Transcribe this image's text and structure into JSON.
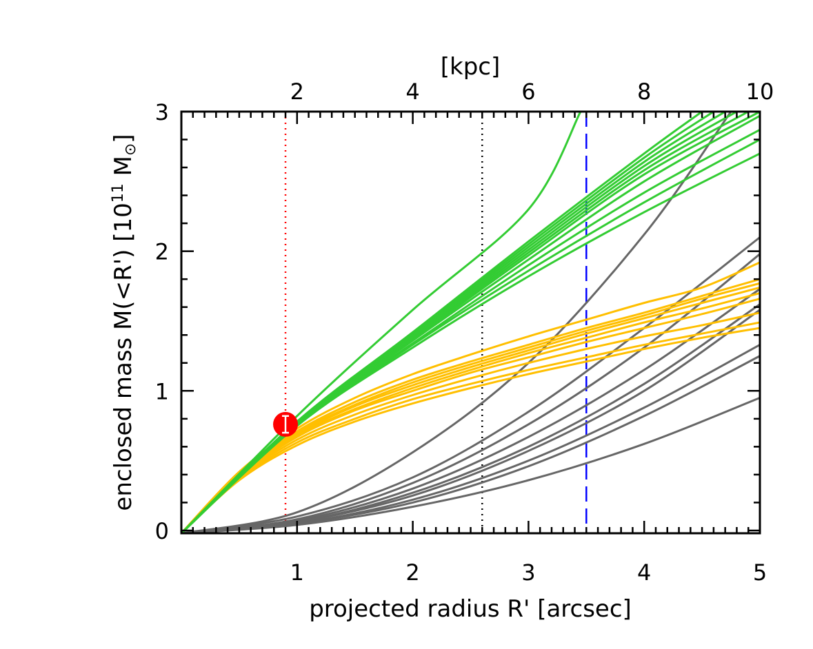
{
  "chart_data": {
    "type": "line",
    "xlabel": "projected radius R' [arcsec]",
    "ylabel": "enclosed mass  M(<R')  [10",
    "ylabel_exp": "11",
    "ylabel_unit": " M",
    "ylabel_unit_sub": "⊙",
    "ylabel_close": "]",
    "top_xlabel": "[kpc]",
    "xlim": [
      0,
      5
    ],
    "ylim": [
      -0.02,
      3.0
    ],
    "x_ticks": [
      1,
      2,
      3,
      4,
      5
    ],
    "y_ticks": [
      0,
      1,
      2,
      3
    ],
    "top_ticks_kpc": [
      2,
      4,
      6,
      8,
      10
    ],
    "kpc_per_arcsec": 2.0,
    "grid": false,
    "vlines": [
      {
        "x": 0.9,
        "color": "#ff0000",
        "style": "dotted"
      },
      {
        "x": 2.6,
        "color": "#000000",
        "style": "dotted"
      },
      {
        "x": 3.5,
        "color": "#0000ff",
        "style": "dashed"
      }
    ],
    "marker": {
      "x": 0.9,
      "y": 0.76,
      "yerr": 0.06,
      "color": "#ff0000"
    },
    "series": [
      {
        "group": "green",
        "color": "#33cc33",
        "points": [
          [
            0,
            -0.02
          ],
          [
            1,
            0.82
          ],
          [
            2,
            1.58
          ],
          [
            3,
            2.3
          ],
          [
            3.45,
            3.0
          ]
        ]
      },
      {
        "group": "green",
        "color": "#33cc33",
        "points": [
          [
            0,
            -0.02
          ],
          [
            1,
            0.78
          ],
          [
            2,
            1.42
          ],
          [
            3,
            2.07
          ],
          [
            4,
            2.7
          ],
          [
            4.5,
            3.0
          ]
        ]
      },
      {
        "group": "green",
        "color": "#33cc33",
        "points": [
          [
            0,
            -0.02
          ],
          [
            1,
            0.78
          ],
          [
            2,
            1.41
          ],
          [
            3,
            2.05
          ],
          [
            4,
            2.67
          ],
          [
            4.6,
            3.0
          ]
        ]
      },
      {
        "group": "green",
        "color": "#33cc33",
        "points": [
          [
            0,
            -0.02
          ],
          [
            1,
            0.77
          ],
          [
            2,
            1.4
          ],
          [
            3,
            2.03
          ],
          [
            4,
            2.64
          ],
          [
            4.7,
            3.0
          ]
        ]
      },
      {
        "group": "green",
        "color": "#33cc33",
        "points": [
          [
            0,
            -0.02
          ],
          [
            1,
            0.77
          ],
          [
            2,
            1.39
          ],
          [
            3,
            2.01
          ],
          [
            4,
            2.61
          ],
          [
            4.8,
            3.0
          ]
        ]
      },
      {
        "group": "green",
        "color": "#33cc33",
        "points": [
          [
            0,
            -0.02
          ],
          [
            1,
            0.77
          ],
          [
            2,
            1.38
          ],
          [
            3,
            1.99
          ],
          [
            4,
            2.58
          ],
          [
            4.9,
            3.0
          ]
        ]
      },
      {
        "group": "green",
        "color": "#33cc33",
        "points": [
          [
            0,
            -0.02
          ],
          [
            1,
            0.76
          ],
          [
            2,
            1.37
          ],
          [
            3,
            1.97
          ],
          [
            4,
            2.55
          ],
          [
            5,
            3.0
          ]
        ]
      },
      {
        "group": "green",
        "color": "#33cc33",
        "points": [
          [
            0,
            -0.02
          ],
          [
            1,
            0.76
          ],
          [
            2,
            1.36
          ],
          [
            3,
            1.94
          ],
          [
            4,
            2.5
          ],
          [
            5,
            2.97
          ]
        ]
      },
      {
        "group": "green",
        "color": "#33cc33",
        "points": [
          [
            0,
            -0.02
          ],
          [
            1,
            0.76
          ],
          [
            2,
            1.34
          ],
          [
            3,
            1.9
          ],
          [
            4,
            2.42
          ],
          [
            5,
            2.87
          ]
        ]
      },
      {
        "group": "green",
        "color": "#33cc33",
        "points": [
          [
            0,
            -0.02
          ],
          [
            1,
            0.75
          ],
          [
            2,
            1.33
          ],
          [
            3,
            1.86
          ],
          [
            4,
            2.35
          ],
          [
            5,
            2.8
          ]
        ]
      },
      {
        "group": "green",
        "color": "#33cc33",
        "points": [
          [
            0,
            -0.02
          ],
          [
            1,
            0.75
          ],
          [
            2,
            1.31
          ],
          [
            3,
            1.82
          ],
          [
            4,
            2.28
          ],
          [
            5,
            2.7
          ]
        ]
      },
      {
        "group": "orange",
        "color": "#ffbf00",
        "points": [
          [
            0,
            -0.02
          ],
          [
            0.5,
            0.42
          ],
          [
            1,
            0.73
          ],
          [
            1.5,
            0.95
          ],
          [
            2,
            1.12
          ],
          [
            2.5,
            1.26
          ],
          [
            3,
            1.39
          ],
          [
            3.5,
            1.51
          ],
          [
            4,
            1.63
          ],
          [
            4.5,
            1.74
          ],
          [
            5,
            1.92
          ]
        ]
      },
      {
        "group": "orange",
        "color": "#ffbf00",
        "points": [
          [
            0,
            -0.02
          ],
          [
            0.5,
            0.41
          ],
          [
            1,
            0.71
          ],
          [
            1.5,
            0.92
          ],
          [
            2,
            1.08
          ],
          [
            2.5,
            1.21
          ],
          [
            3,
            1.33
          ],
          [
            3.5,
            1.45
          ],
          [
            4,
            1.56
          ],
          [
            4.5,
            1.68
          ],
          [
            5,
            1.8
          ]
        ]
      },
      {
        "group": "orange",
        "color": "#ffbf00",
        "points": [
          [
            0,
            -0.02
          ],
          [
            0.5,
            0.41
          ],
          [
            1,
            0.7
          ],
          [
            1.5,
            0.9
          ],
          [
            2,
            1.06
          ],
          [
            2.5,
            1.19
          ],
          [
            3,
            1.31
          ],
          [
            3.5,
            1.43
          ],
          [
            4,
            1.54
          ],
          [
            4.5,
            1.66
          ],
          [
            5,
            1.77
          ]
        ]
      },
      {
        "group": "orange",
        "color": "#ffbf00",
        "points": [
          [
            0,
            -0.02
          ],
          [
            0.5,
            0.4
          ],
          [
            1,
            0.69
          ],
          [
            1.5,
            0.89
          ],
          [
            2,
            1.04
          ],
          [
            2.5,
            1.17
          ],
          [
            3,
            1.29
          ],
          [
            3.5,
            1.41
          ],
          [
            4,
            1.52
          ],
          [
            4.5,
            1.63
          ],
          [
            5,
            1.74
          ]
        ]
      },
      {
        "group": "orange",
        "color": "#ffbf00",
        "points": [
          [
            0,
            -0.02
          ],
          [
            0.5,
            0.4
          ],
          [
            1,
            0.68
          ],
          [
            1.5,
            0.87
          ],
          [
            2,
            1.02
          ],
          [
            2.5,
            1.15
          ],
          [
            3,
            1.27
          ],
          [
            3.5,
            1.38
          ],
          [
            4,
            1.49
          ],
          [
            4.5,
            1.59
          ],
          [
            5,
            1.7
          ]
        ]
      },
      {
        "group": "orange",
        "color": "#ffbf00",
        "points": [
          [
            0,
            -0.02
          ],
          [
            0.5,
            0.39
          ],
          [
            1,
            0.67
          ],
          [
            1.5,
            0.86
          ],
          [
            2,
            1.0
          ],
          [
            2.5,
            1.13
          ],
          [
            3,
            1.24
          ],
          [
            3.5,
            1.35
          ],
          [
            4,
            1.45
          ],
          [
            4.5,
            1.55
          ],
          [
            5,
            1.66
          ]
        ]
      },
      {
        "group": "orange",
        "color": "#ffbf00",
        "points": [
          [
            0,
            -0.02
          ],
          [
            0.5,
            0.38
          ],
          [
            1,
            0.65
          ],
          [
            1.5,
            0.83
          ],
          [
            2,
            0.97
          ],
          [
            2.5,
            1.09
          ],
          [
            3,
            1.2
          ],
          [
            3.5,
            1.3
          ],
          [
            4,
            1.39
          ],
          [
            4.5,
            1.47
          ],
          [
            5,
            1.56
          ]
        ]
      },
      {
        "group": "orange",
        "color": "#ffbf00",
        "points": [
          [
            0,
            -0.02
          ],
          [
            0.5,
            0.37
          ],
          [
            1,
            0.63
          ],
          [
            1.5,
            0.8
          ],
          [
            2,
            0.94
          ],
          [
            2.5,
            1.05
          ],
          [
            3,
            1.15
          ],
          [
            3.5,
            1.24
          ],
          [
            4,
            1.33
          ],
          [
            4.5,
            1.41
          ],
          [
            5,
            1.49
          ]
        ]
      },
      {
        "group": "orange",
        "color": "#ffbf00",
        "points": [
          [
            0,
            -0.02
          ],
          [
            0.5,
            0.36
          ],
          [
            1,
            0.61
          ],
          [
            1.5,
            0.78
          ],
          [
            2,
            0.91
          ],
          [
            2.5,
            1.02
          ],
          [
            3,
            1.12
          ],
          [
            3.5,
            1.21
          ],
          [
            4,
            1.3
          ],
          [
            4.5,
            1.38
          ],
          [
            5,
            1.45
          ]
        ]
      },
      {
        "group": "gray",
        "color": "#666666",
        "points": [
          [
            0,
            -0.02
          ],
          [
            1,
            0.13
          ],
          [
            2,
            0.56
          ],
          [
            3,
            1.2
          ],
          [
            4,
            2.12
          ],
          [
            4.75,
            3.0
          ]
        ]
      },
      {
        "group": "gray",
        "color": "#666666",
        "points": [
          [
            0,
            -0.02
          ],
          [
            1,
            0.1
          ],
          [
            2,
            0.38
          ],
          [
            3,
            0.85
          ],
          [
            4,
            1.45
          ],
          [
            5,
            2.1
          ]
        ]
      },
      {
        "group": "gray",
        "color": "#666666",
        "points": [
          [
            0,
            -0.02
          ],
          [
            1,
            0.08
          ],
          [
            2,
            0.34
          ],
          [
            3,
            0.76
          ],
          [
            4,
            1.31
          ],
          [
            5,
            1.98
          ]
        ]
      },
      {
        "group": "gray",
        "color": "#666666",
        "points": [
          [
            0,
            -0.02
          ],
          [
            1,
            0.07
          ],
          [
            2,
            0.3
          ],
          [
            3,
            0.67
          ],
          [
            4,
            1.15
          ],
          [
            5,
            1.73
          ]
        ]
      },
      {
        "group": "gray",
        "color": "#666666",
        "points": [
          [
            0,
            -0.02
          ],
          [
            1,
            0.06
          ],
          [
            2,
            0.27
          ],
          [
            3,
            0.6
          ],
          [
            4,
            1.05
          ],
          [
            5,
            1.62
          ]
        ]
      },
      {
        "group": "gray",
        "color": "#666666",
        "points": [
          [
            0,
            -0.02
          ],
          [
            1,
            0.06
          ],
          [
            2,
            0.25
          ],
          [
            3,
            0.57
          ],
          [
            4,
            1.0
          ],
          [
            5,
            1.58
          ]
        ]
      },
      {
        "group": "gray",
        "color": "#666666",
        "points": [
          [
            0,
            -0.02
          ],
          [
            1,
            0.05
          ],
          [
            2,
            0.22
          ],
          [
            3,
            0.5
          ],
          [
            4,
            0.88
          ],
          [
            5,
            1.33
          ]
        ]
      },
      {
        "group": "gray",
        "color": "#666666",
        "points": [
          [
            0,
            -0.02
          ],
          [
            1,
            0.05
          ],
          [
            2,
            0.2
          ],
          [
            3,
            0.46
          ],
          [
            4,
            0.82
          ],
          [
            5,
            1.25
          ]
        ]
      },
      {
        "group": "gray",
        "color": "#666666",
        "points": [
          [
            0,
            -0.02
          ],
          [
            1,
            0.04
          ],
          [
            2,
            0.17
          ],
          [
            3,
            0.36
          ],
          [
            4,
            0.62
          ],
          [
            5,
            0.95
          ]
        ]
      }
    ]
  }
}
